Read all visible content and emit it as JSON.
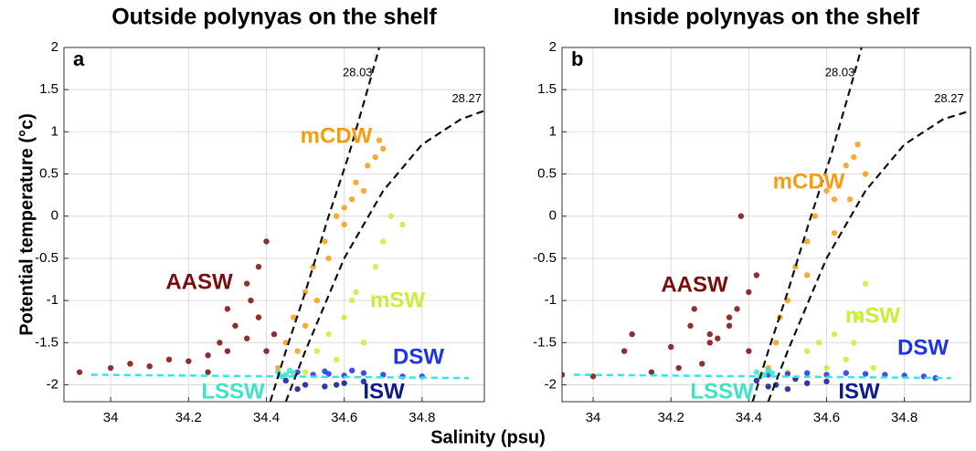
{
  "figure": {
    "xlabel": "Salinity (psu)",
    "ylabel": "Potential temperature (°c)"
  },
  "chart_data": [
    {
      "type": "scatter",
      "title": "Outside polynyas on the shelf",
      "panel_label": "a",
      "xlim": [
        33.88,
        34.96
      ],
      "ylim": [
        -2.2,
        2
      ],
      "xticks": [
        34,
        34.2,
        34.4,
        34.6,
        34.8
      ],
      "yticks": [
        2,
        1.5,
        1,
        0.5,
        0,
        -0.5,
        -1,
        -1.5,
        -2
      ],
      "grid": true,
      "series": [
        {
          "name": "AASW",
          "color": "#7a0c0c",
          "x": [
            33.92,
            34.0,
            34.05,
            34.1,
            34.15,
            34.2,
            34.25,
            34.28,
            34.3,
            34.32,
            34.35,
            34.38,
            34.4,
            34.42,
            34.3,
            34.35,
            34.38,
            34.4,
            34.25,
            34.36
          ],
          "values": [
            -1.85,
            -1.8,
            -1.75,
            -1.78,
            -1.7,
            -1.72,
            -1.65,
            -1.5,
            -1.6,
            -1.3,
            -1.45,
            -1.2,
            -1.6,
            -1.4,
            -1.1,
            -0.8,
            -0.6,
            -0.3,
            -1.85,
            -1.0
          ]
        },
        {
          "name": "mCDW",
          "color": "#f59d12",
          "x": [
            34.43,
            34.45,
            34.47,
            34.48,
            34.5,
            34.52,
            34.53,
            34.55,
            34.56,
            34.58,
            34.6,
            34.62,
            34.63,
            34.65,
            34.66,
            34.68,
            34.69,
            34.7,
            34.5,
            34.6
          ],
          "values": [
            -1.8,
            -1.5,
            -1.2,
            -1.6,
            -0.9,
            -0.6,
            -1.0,
            -0.3,
            -0.5,
            0.0,
            -0.1,
            0.2,
            0.4,
            0.3,
            0.6,
            0.7,
            0.9,
            0.8,
            -1.3,
            0.1
          ]
        },
        {
          "name": "mSW",
          "color": "#c6ef3a",
          "x": [
            34.5,
            34.53,
            34.56,
            34.6,
            34.63,
            34.65,
            34.68,
            34.7,
            34.72,
            34.75,
            34.58,
            34.62
          ],
          "values": [
            -1.85,
            -1.6,
            -1.4,
            -1.2,
            -0.9,
            -1.5,
            -0.6,
            -0.3,
            0.0,
            -0.1,
            -1.7,
            -1.0
          ]
        },
        {
          "name": "DSW",
          "color": "#1c34e2",
          "x": [
            34.48,
            34.52,
            34.56,
            34.6,
            34.65,
            34.7,
            34.75,
            34.8,
            34.55,
            34.62
          ],
          "values": [
            -1.85,
            -1.88,
            -1.87,
            -1.89,
            -1.86,
            -1.88,
            -1.9,
            -1.9,
            -1.84,
            -1.83
          ]
        },
        {
          "name": "LSSW",
          "color": "#3fe3c3",
          "x": [
            34.43,
            34.45,
            34.47,
            34.44,
            34.46
          ],
          "values": [
            -1.85,
            -1.88,
            -1.86,
            -1.9,
            -1.83
          ]
        },
        {
          "name": "ISW",
          "color": "#0c1a8c",
          "x": [
            34.45,
            34.5,
            34.55,
            34.6,
            34.65,
            34.48,
            34.58
          ],
          "values": [
            -1.95,
            -2.0,
            -2.02,
            -1.98,
            -1.96,
            -2.05,
            -2.0
          ]
        }
      ],
      "isopycnals": [
        {
          "label": "28.03",
          "x": [
            34.41,
            34.45,
            34.5,
            34.56,
            34.61,
            34.66,
            34.69
          ],
          "values": [
            -2.2,
            -1.6,
            -0.9,
            0,
            0.7,
            1.5,
            2.0
          ]
        },
        {
          "label": "28.27",
          "x": [
            34.45,
            34.5,
            34.6,
            34.7,
            34.8,
            34.9,
            34.96
          ],
          "values": [
            -2.2,
            -1.6,
            -0.5,
            0.3,
            0.85,
            1.15,
            1.25
          ]
        }
      ],
      "freezing_line": {
        "x": [
          33.95,
          34.92
        ],
        "values": [
          -1.88,
          -1.92
        ]
      }
    },
    {
      "type": "scatter",
      "title": "Inside polynyas on the shelf",
      "panel_label": "b",
      "xlim": [
        33.92,
        34.97
      ],
      "ylim": [
        -2.2,
        2
      ],
      "xticks": [
        34,
        34.2,
        34.4,
        34.6,
        34.8
      ],
      "yticks": [
        2,
        1.5,
        1,
        0.5,
        0,
        -0.5,
        -1,
        -1.5,
        -2
      ],
      "grid": true,
      "series": [
        {
          "name": "AASW",
          "color": "#7a0c0c",
          "x": [
            33.92,
            34.0,
            34.08,
            34.15,
            34.2,
            34.22,
            34.25,
            34.28,
            34.3,
            34.32,
            34.35,
            34.37,
            34.4,
            34.42,
            34.3,
            34.35,
            34.4,
            34.38,
            34.1,
            34.26
          ],
          "values": [
            -1.88,
            -1.9,
            -1.6,
            -1.85,
            -1.55,
            -1.8,
            -1.3,
            -1.75,
            -1.5,
            -1.45,
            -1.3,
            -1.1,
            -0.9,
            -0.7,
            -1.4,
            -1.2,
            -1.6,
            0.0,
            -1.4,
            -1.1
          ]
        },
        {
          "name": "mCDW",
          "color": "#f59d12",
          "x": [
            34.45,
            34.47,
            34.48,
            34.5,
            34.52,
            34.55,
            34.57,
            34.6,
            34.62,
            34.65,
            34.67,
            34.68,
            34.7,
            34.55,
            34.62,
            34.66
          ],
          "values": [
            -1.8,
            -1.5,
            -1.2,
            -1.0,
            -0.6,
            -0.3,
            0.0,
            0.3,
            0.2,
            0.6,
            0.7,
            0.85,
            0.5,
            -0.7,
            -0.2,
            0.2
          ]
        },
        {
          "name": "mSW",
          "color": "#c6ef3a",
          "x": [
            34.5,
            34.55,
            34.58,
            34.62,
            34.65,
            34.68,
            34.7,
            34.72,
            34.6,
            34.67
          ],
          "values": [
            -1.85,
            -1.6,
            -1.5,
            -1.4,
            -1.7,
            -1.2,
            -0.8,
            -1.8,
            -1.8,
            -1.5
          ]
        },
        {
          "name": "DSW",
          "color": "#1c34e2",
          "x": [
            34.45,
            34.5,
            34.55,
            34.6,
            34.65,
            34.7,
            34.75,
            34.8,
            34.85,
            34.88
          ],
          "values": [
            -1.88,
            -1.87,
            -1.86,
            -1.88,
            -1.86,
            -1.87,
            -1.88,
            -1.89,
            -1.9,
            -1.92
          ]
        },
        {
          "name": "LSSW",
          "color": "#3fe3c3",
          "x": [
            34.42,
            34.44,
            34.46,
            34.43,
            34.45
          ],
          "values": [
            -1.85,
            -1.88,
            -1.86,
            -1.9,
            -1.83
          ]
        },
        {
          "name": "ISW",
          "color": "#0c1a8c",
          "x": [
            34.42,
            34.47,
            34.5,
            34.55,
            34.6,
            34.45,
            34.52
          ],
          "values": [
            -1.95,
            -2.0,
            -2.05,
            -1.98,
            -1.96,
            -2.02,
            -1.93
          ]
        }
      ],
      "isopycnals": [
        {
          "label": "28.03",
          "x": [
            34.41,
            34.45,
            34.5,
            34.56,
            34.61,
            34.66,
            34.69
          ],
          "values": [
            -2.2,
            -1.6,
            -0.9,
            0,
            0.7,
            1.5,
            2.0
          ]
        },
        {
          "label": "28.27",
          "x": [
            34.45,
            34.5,
            34.6,
            34.7,
            34.8,
            34.9,
            34.97
          ],
          "values": [
            -2.2,
            -1.6,
            -0.5,
            0.3,
            0.85,
            1.15,
            1.25
          ]
        }
      ],
      "freezing_line": {
        "x": [
          33.95,
          34.92
        ],
        "values": [
          -1.88,
          -1.92
        ]
      }
    }
  ]
}
